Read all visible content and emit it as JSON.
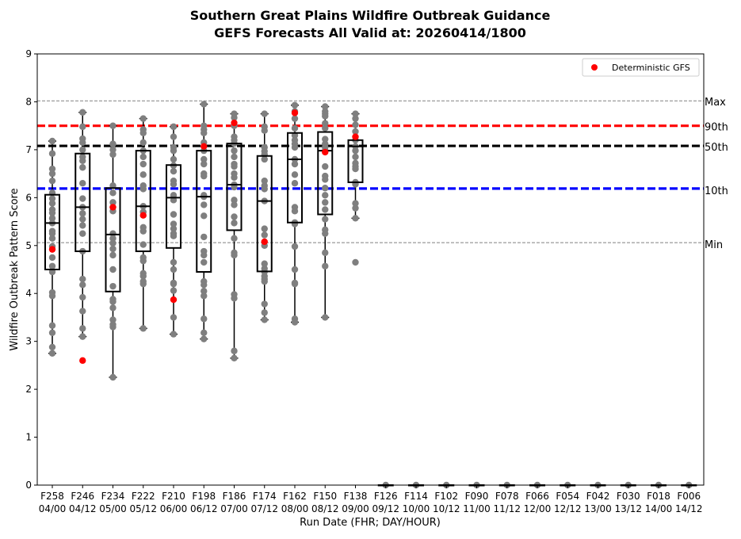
{
  "chart_data": {
    "type": "boxplot",
    "title": "Southern Great Plains Wildfire Outbreak Guidance",
    "subtitle": "GEFS Forecasts All Valid at: 20260414/1800",
    "xlabel": "Run Date (FHR; DAY/HOUR)",
    "ylabel": "Wildfire Outbreak Pattern Score",
    "ylim": [
      0,
      9
    ],
    "yticks": [
      0,
      1,
      2,
      3,
      4,
      5,
      6,
      7,
      8,
      9
    ],
    "legend": {
      "label": "Deterministic GFS",
      "placement": "top-right",
      "color": "#ff0000"
    },
    "reference_lines": [
      {
        "name": "Max",
        "value": 8.02,
        "color": "#808080",
        "style": "dashed-thin"
      },
      {
        "name": "90th",
        "value": 7.5,
        "color": "#ff0000",
        "style": "dashed-thick"
      },
      {
        "name": "50th",
        "value": 7.08,
        "color": "#000000",
        "style": "dashed-thick"
      },
      {
        "name": "10th",
        "value": 6.19,
        "color": "#0000ff",
        "style": "dashed-thick"
      },
      {
        "name": "Min",
        "value": 5.06,
        "color": "#808080",
        "style": "dashed-thin"
      }
    ],
    "categories": [
      {
        "fhr": "F258",
        "day": "04/00"
      },
      {
        "fhr": "F246",
        "day": "04/12"
      },
      {
        "fhr": "F234",
        "day": "05/00"
      },
      {
        "fhr": "F222",
        "day": "05/12"
      },
      {
        "fhr": "F210",
        "day": "06/00"
      },
      {
        "fhr": "F198",
        "day": "06/12"
      },
      {
        "fhr": "F186",
        "day": "07/00"
      },
      {
        "fhr": "F174",
        "day": "07/12"
      },
      {
        "fhr": "F162",
        "day": "08/00"
      },
      {
        "fhr": "F150",
        "day": "08/12"
      },
      {
        "fhr": "F138",
        "day": "09/00"
      },
      {
        "fhr": "F126",
        "day": "09/12"
      },
      {
        "fhr": "F114",
        "day": "10/00"
      },
      {
        "fhr": "F102",
        "day": "10/12"
      },
      {
        "fhr": "F090",
        "day": "11/00"
      },
      {
        "fhr": "F078",
        "day": "11/12"
      },
      {
        "fhr": "F066",
        "day": "12/00"
      },
      {
        "fhr": "F054",
        "day": "12/12"
      },
      {
        "fhr": "F042",
        "day": "13/00"
      },
      {
        "fhr": "F030",
        "day": "13/12"
      },
      {
        "fhr": "F018",
        "day": "14/00"
      },
      {
        "fhr": "F006",
        "day": "14/12"
      }
    ],
    "boxes": [
      {
        "min": 2.75,
        "q1": 4.5,
        "median": 5.47,
        "q3": 6.06,
        "max": 7.18
      },
      {
        "min": 3.1,
        "q1": 4.88,
        "median": 5.8,
        "q3": 6.92,
        "max": 7.78
      },
      {
        "min": 2.25,
        "q1": 4.04,
        "median": 5.23,
        "q3": 6.2,
        "max": 7.5
      },
      {
        "min": 3.27,
        "q1": 4.88,
        "median": 5.82,
        "q3": 6.98,
        "max": 7.65
      },
      {
        "min": 3.15,
        "q1": 4.95,
        "median": 6.0,
        "q3": 6.68,
        "max": 7.48
      },
      {
        "min": 3.05,
        "q1": 4.45,
        "median": 6.02,
        "q3": 6.98,
        "max": 7.95
      },
      {
        "min": 2.65,
        "q1": 5.32,
        "median": 6.27,
        "q3": 7.13,
        "max": 7.75
      },
      {
        "min": 3.45,
        "q1": 4.46,
        "median": 5.93,
        "q3": 6.87,
        "max": 7.75
      },
      {
        "min": 3.4,
        "q1": 5.48,
        "median": 6.8,
        "q3": 7.35,
        "max": 7.93
      },
      {
        "min": 3.5,
        "q1": 5.65,
        "median": 6.98,
        "q3": 7.37,
        "max": 7.9
      },
      {
        "min": 5.57,
        "q1": 6.32,
        "median": 7.07,
        "q3": 7.2,
        "max": 7.75
      },
      {
        "min": 0,
        "q1": 0,
        "median": 0,
        "q3": 0,
        "max": 0
      },
      {
        "min": 0,
        "q1": 0,
        "median": 0,
        "q3": 0,
        "max": 0
      },
      {
        "min": 0,
        "q1": 0,
        "median": 0,
        "q3": 0,
        "max": 0
      },
      {
        "min": 0,
        "q1": 0,
        "median": 0,
        "q3": 0,
        "max": 0
      },
      {
        "min": 0,
        "q1": 0,
        "median": 0,
        "q3": 0,
        "max": 0
      },
      {
        "min": 0,
        "q1": 0,
        "median": 0,
        "q3": 0,
        "max": 0
      },
      {
        "min": 0,
        "q1": 0,
        "median": 0,
        "q3": 0,
        "max": 0
      },
      {
        "min": 0,
        "q1": 0,
        "median": 0,
        "q3": 0,
        "max": 0
      },
      {
        "min": 0,
        "q1": 0,
        "median": 0,
        "q3": 0,
        "max": 0
      },
      {
        "min": 0,
        "q1": 0,
        "median": 0,
        "q3": 0,
        "max": 0
      },
      {
        "min": 0,
        "q1": 0,
        "median": 0,
        "q3": 0,
        "max": 0
      }
    ],
    "members": [
      [
        7.18,
        6.92,
        6.6,
        6.5,
        6.35,
        6.1,
        5.98,
        5.88,
        5.75,
        5.68,
        5.57,
        5.47,
        5.3,
        5.25,
        5.15,
        4.98,
        4.75,
        4.57,
        4.45,
        4.02,
        3.95,
        3.33,
        3.18,
        2.88,
        2.75
      ],
      [
        7.78,
        7.48,
        7.23,
        7.15,
        7.0,
        6.85,
        6.77,
        6.63,
        6.3,
        5.98,
        5.8,
        5.67,
        5.55,
        5.42,
        5.25,
        4.88,
        4.3,
        4.18,
        3.92,
        3.63,
        3.27,
        3.1
      ],
      [
        7.5,
        7.12,
        7.0,
        6.9,
        6.25,
        6.1,
        5.9,
        5.8,
        5.72,
        5.25,
        5.15,
        5.05,
        4.93,
        4.8,
        4.5,
        4.15,
        3.88,
        3.83,
        3.7,
        3.45,
        3.35,
        3.3,
        2.25
      ],
      [
        7.65,
        7.42,
        7.35,
        7.15,
        6.98,
        6.85,
        6.7,
        6.48,
        6.25,
        6.18,
        5.82,
        5.7,
        5.38,
        5.3,
        5.02,
        4.75,
        4.68,
        4.42,
        4.36,
        4.25,
        4.2,
        3.27
      ],
      [
        7.48,
        7.27,
        7.05,
        6.98,
        6.8,
        6.67,
        6.55,
        6.35,
        6.28,
        6.05,
        5.95,
        5.65,
        5.45,
        5.35,
        5.25,
        5.2,
        4.65,
        4.5,
        4.22,
        4.2,
        4.06,
        3.5,
        3.15
      ],
      [
        7.95,
        7.5,
        7.42,
        7.35,
        7.15,
        6.98,
        6.8,
        6.7,
        6.5,
        6.45,
        6.05,
        6.02,
        5.85,
        5.62,
        5.18,
        4.88,
        4.8,
        4.65,
        4.25,
        4.18,
        4.05,
        3.95,
        3.47,
        3.18,
        3.05
      ],
      [
        7.75,
        7.67,
        7.5,
        7.27,
        7.2,
        7.13,
        6.98,
        6.85,
        6.7,
        6.65,
        6.5,
        6.42,
        6.27,
        6.22,
        5.95,
        5.85,
        5.6,
        5.47,
        5.15,
        4.85,
        4.8,
        3.98,
        3.9,
        2.8,
        2.65
      ],
      [
        7.75,
        7.48,
        7.4,
        7.05,
        6.97,
        6.9,
        6.8,
        6.35,
        6.25,
        6.18,
        5.93,
        5.35,
        5.22,
        5.0,
        4.62,
        4.52,
        4.45,
        4.36,
        4.3,
        4.25,
        3.78,
        3.6,
        3.45
      ],
      [
        7.93,
        7.8,
        7.65,
        7.45,
        7.3,
        7.2,
        7.12,
        7.05,
        6.8,
        6.7,
        6.48,
        6.3,
        5.8,
        5.72,
        5.48,
        5.45,
        4.98,
        4.5,
        4.22,
        4.2,
        3.47,
        3.4
      ],
      [
        7.9,
        7.8,
        7.75,
        7.7,
        7.55,
        7.45,
        7.22,
        7.12,
        7.05,
        6.98,
        6.65,
        6.45,
        6.38,
        6.2,
        6.05,
        5.9,
        5.75,
        5.55,
        5.33,
        5.25,
        4.85,
        4.57,
        3.5
      ],
      [
        7.75,
        7.65,
        7.52,
        7.38,
        7.2,
        7.07,
        6.98,
        6.85,
        6.72,
        6.65,
        6.6,
        6.32,
        6.28,
        5.88,
        5.78,
        5.57,
        4.65
      ],
      [
        0
      ],
      [
        0
      ],
      [
        0
      ],
      [
        0
      ],
      [
        0
      ],
      [
        0
      ],
      [
        0
      ],
      [
        0
      ],
      [
        0
      ],
      [
        0
      ],
      [
        0
      ]
    ],
    "deterministic_gfs": [
      4.92,
      2.6,
      5.8,
      5.63,
      3.87,
      7.07,
      7.56,
      5.08,
      7.77,
      6.95,
      7.27,
      null,
      null,
      null,
      null,
      null,
      null,
      null,
      null,
      null,
      null,
      null
    ]
  }
}
